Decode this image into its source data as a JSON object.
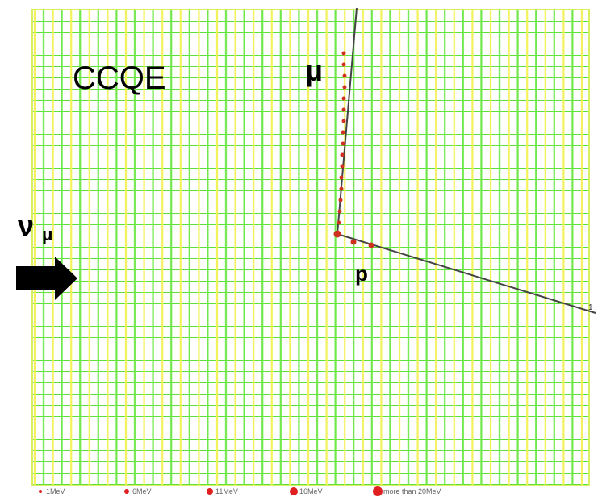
{
  "labels": {
    "interaction": "CCQE",
    "muon": "μ",
    "neutrino": "ν",
    "neutrino_sub": "μ",
    "proton": "p",
    "track_end": "1"
  },
  "legend": [
    "1MeV",
    "6MeV",
    "11MeV",
    "16MeV",
    "more than 20MeV"
  ]
}
